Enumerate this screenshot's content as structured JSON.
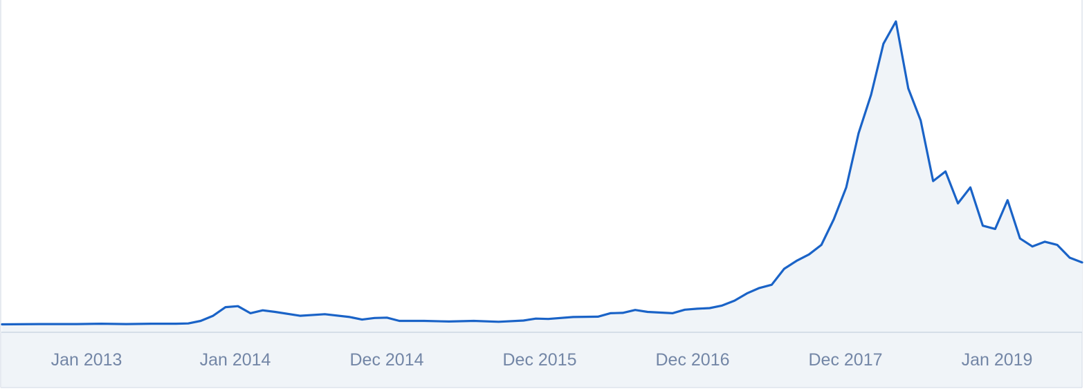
{
  "chart_data": {
    "type": "area",
    "title": "",
    "xlabel": "",
    "ylabel": "",
    "x_tick_labels": [
      "Jan 2013",
      "Jan 2014",
      "Dec 2014",
      "Dec 2015",
      "Dec 2016",
      "Dec 2017",
      "Jan 2019"
    ],
    "x_range": [
      "2012-05",
      "2019-08"
    ],
    "y_axis_visible": false,
    "grid": false,
    "legend": "none",
    "colors": {
      "line": "#1a63c7",
      "fill": "#f0f4f8",
      "axis_band": "#f0f4f8",
      "axis_line": "#ccd6e2",
      "tick_text": "#7386a6"
    },
    "series": [
      {
        "values": [
          [
            "2012-05",
            0.001
          ],
          [
            "2012-08",
            0.002
          ],
          [
            "2012-11",
            0.002
          ],
          [
            "2013-01",
            0.003
          ],
          [
            "2013-03",
            0.002
          ],
          [
            "2013-05",
            0.003
          ],
          [
            "2013-07",
            0.003
          ],
          [
            "2013-08",
            0.004
          ],
          [
            "2013-09",
            0.012
          ],
          [
            "2013-10",
            0.028
          ],
          [
            "2013-11",
            0.055
          ],
          [
            "2013-12",
            0.058
          ],
          [
            "2014-01",
            0.036
          ],
          [
            "2014-02",
            0.045
          ],
          [
            "2014-03",
            0.04
          ],
          [
            "2014-05",
            0.028
          ],
          [
            "2014-07",
            0.033
          ],
          [
            "2014-09",
            0.024
          ],
          [
            "2014-10",
            0.016
          ],
          [
            "2014-11",
            0.021
          ],
          [
            "2014-12",
            0.022
          ],
          [
            "2015-01",
            0.012
          ],
          [
            "2015-03",
            0.012
          ],
          [
            "2015-05",
            0.01
          ],
          [
            "2015-07",
            0.012
          ],
          [
            "2015-09",
            0.009
          ],
          [
            "2015-11",
            0.013
          ],
          [
            "2015-12",
            0.019
          ],
          [
            "2016-01",
            0.018
          ],
          [
            "2016-03",
            0.024
          ],
          [
            "2016-05",
            0.025
          ],
          [
            "2016-06",
            0.036
          ],
          [
            "2016-07",
            0.037
          ],
          [
            "2016-08",
            0.046
          ],
          [
            "2016-09",
            0.04
          ],
          [
            "2016-11",
            0.036
          ],
          [
            "2016-12",
            0.047
          ],
          [
            "2017-01",
            0.05
          ],
          [
            "2017-02",
            0.052
          ],
          [
            "2017-03",
            0.06
          ],
          [
            "2017-04",
            0.075
          ],
          [
            "2017-05",
            0.098
          ],
          [
            "2017-06",
            0.115
          ],
          [
            "2017-07",
            0.125
          ],
          [
            "2017-08",
            0.175
          ],
          [
            "2017-09",
            0.2
          ],
          [
            "2017-10",
            0.22
          ],
          [
            "2017-11",
            0.25
          ],
          [
            "2017-12",
            0.33
          ],
          [
            "2018-01",
            0.43
          ],
          [
            "2018-02",
            0.6
          ],
          [
            "2018-03",
            0.72
          ],
          [
            "2018-04",
            0.88
          ],
          [
            "2018-05",
            0.95
          ],
          [
            "2018-06",
            0.74
          ],
          [
            "2018-07",
            0.64
          ],
          [
            "2018-08",
            0.45
          ],
          [
            "2018-09",
            0.48
          ],
          [
            "2018-10",
            0.38
          ],
          [
            "2018-11",
            0.43
          ],
          [
            "2018-12",
            0.31
          ],
          [
            "2019-01",
            0.3
          ],
          [
            "2019-02",
            0.39
          ],
          [
            "2019-03",
            0.27
          ],
          [
            "2019-04",
            0.245
          ],
          [
            "2019-05",
            0.26
          ],
          [
            "2019-06",
            0.25
          ],
          [
            "2019-07",
            0.21
          ],
          [
            "2019-08",
            0.195
          ]
        ]
      }
    ]
  }
}
